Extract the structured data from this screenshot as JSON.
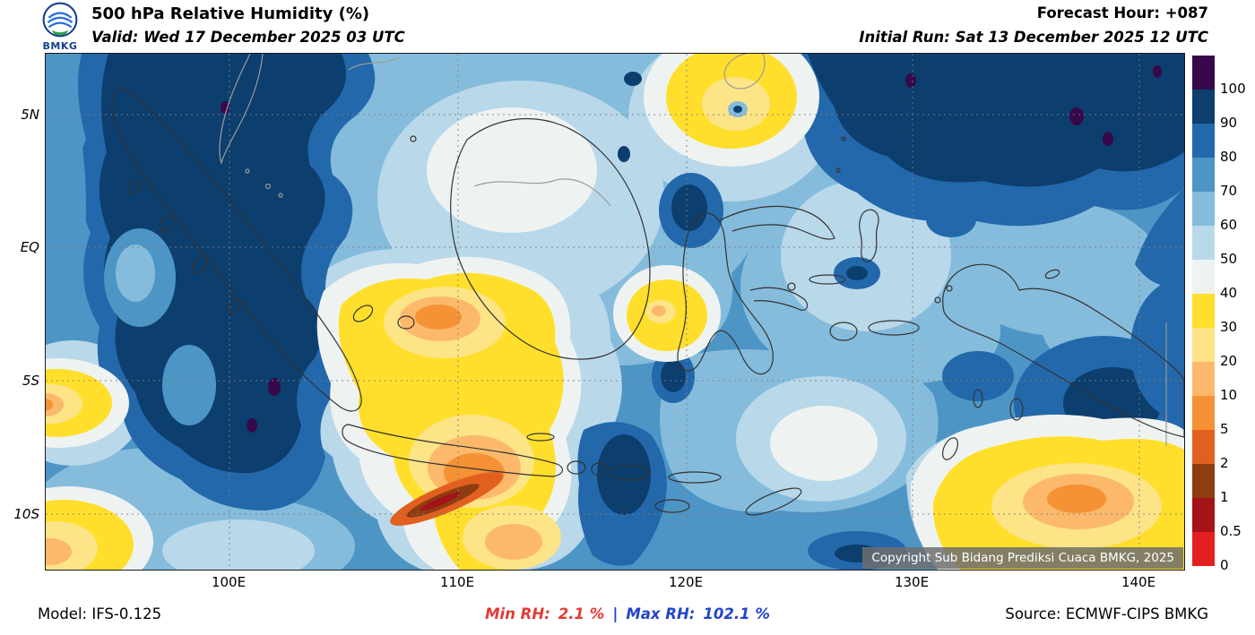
{
  "header": {
    "logo_text": "BMKG",
    "title": "500 hPa Relative Humidity (%)",
    "valid_label": "Valid: Wed 17 December 2025 03 UTC",
    "forecast_hour": "Forecast Hour: +087",
    "initial_run": "Initial Run: Sat 13 December 2025 12 UTC"
  },
  "map": {
    "lat_labels": [
      "5N",
      "EQ",
      "5S",
      "10S"
    ],
    "lon_labels": [
      "100E",
      "110E",
      "120E",
      "130E",
      "140E"
    ],
    "copyright": "Copyright Sub Bidang Prediksi Cuaca BMKG, 2025"
  },
  "colorbar": {
    "labels": [
      "100",
      "90",
      "80",
      "70",
      "60",
      "50",
      "40",
      "30",
      "20",
      "10",
      "5",
      "2",
      "1",
      "0.5",
      "0"
    ],
    "segment_colors": [
      "#37094a",
      "#0c3e6e",
      "#2368ab",
      "#4d95c5",
      "#85bcdc",
      "#b9d8ea",
      "#eef3f2",
      "#ffdf2b",
      "#fce487",
      "#fcb96b",
      "#f49235",
      "#e2601f",
      "#8e3c12",
      "#a31318",
      "#e31f1f"
    ]
  },
  "footer": {
    "model": "Model: IFS-0.125",
    "min_label": "Min RH:",
    "min_value": "2.1 %",
    "separator": "|",
    "max_label": "Max RH:",
    "max_value": "102.1 %",
    "source": "Source: ECMWF-CIPS BMKG",
    "min_color": "#e53935",
    "max_color": "#2244cc"
  },
  "chart_data": {
    "type": "heatmap",
    "title": "500 hPa Relative Humidity (%)",
    "units": "%",
    "levels": [
      0,
      0.5,
      1,
      2,
      5,
      10,
      20,
      30,
      40,
      50,
      60,
      70,
      80,
      90,
      100
    ],
    "x_ticks": [
      "100E",
      "110E",
      "120E",
      "130E",
      "140E"
    ],
    "y_ticks": [
      "5N",
      "EQ",
      "5S",
      "10S"
    ],
    "min_value": 2.1,
    "max_value": 102.1,
    "legend_position": "right"
  }
}
